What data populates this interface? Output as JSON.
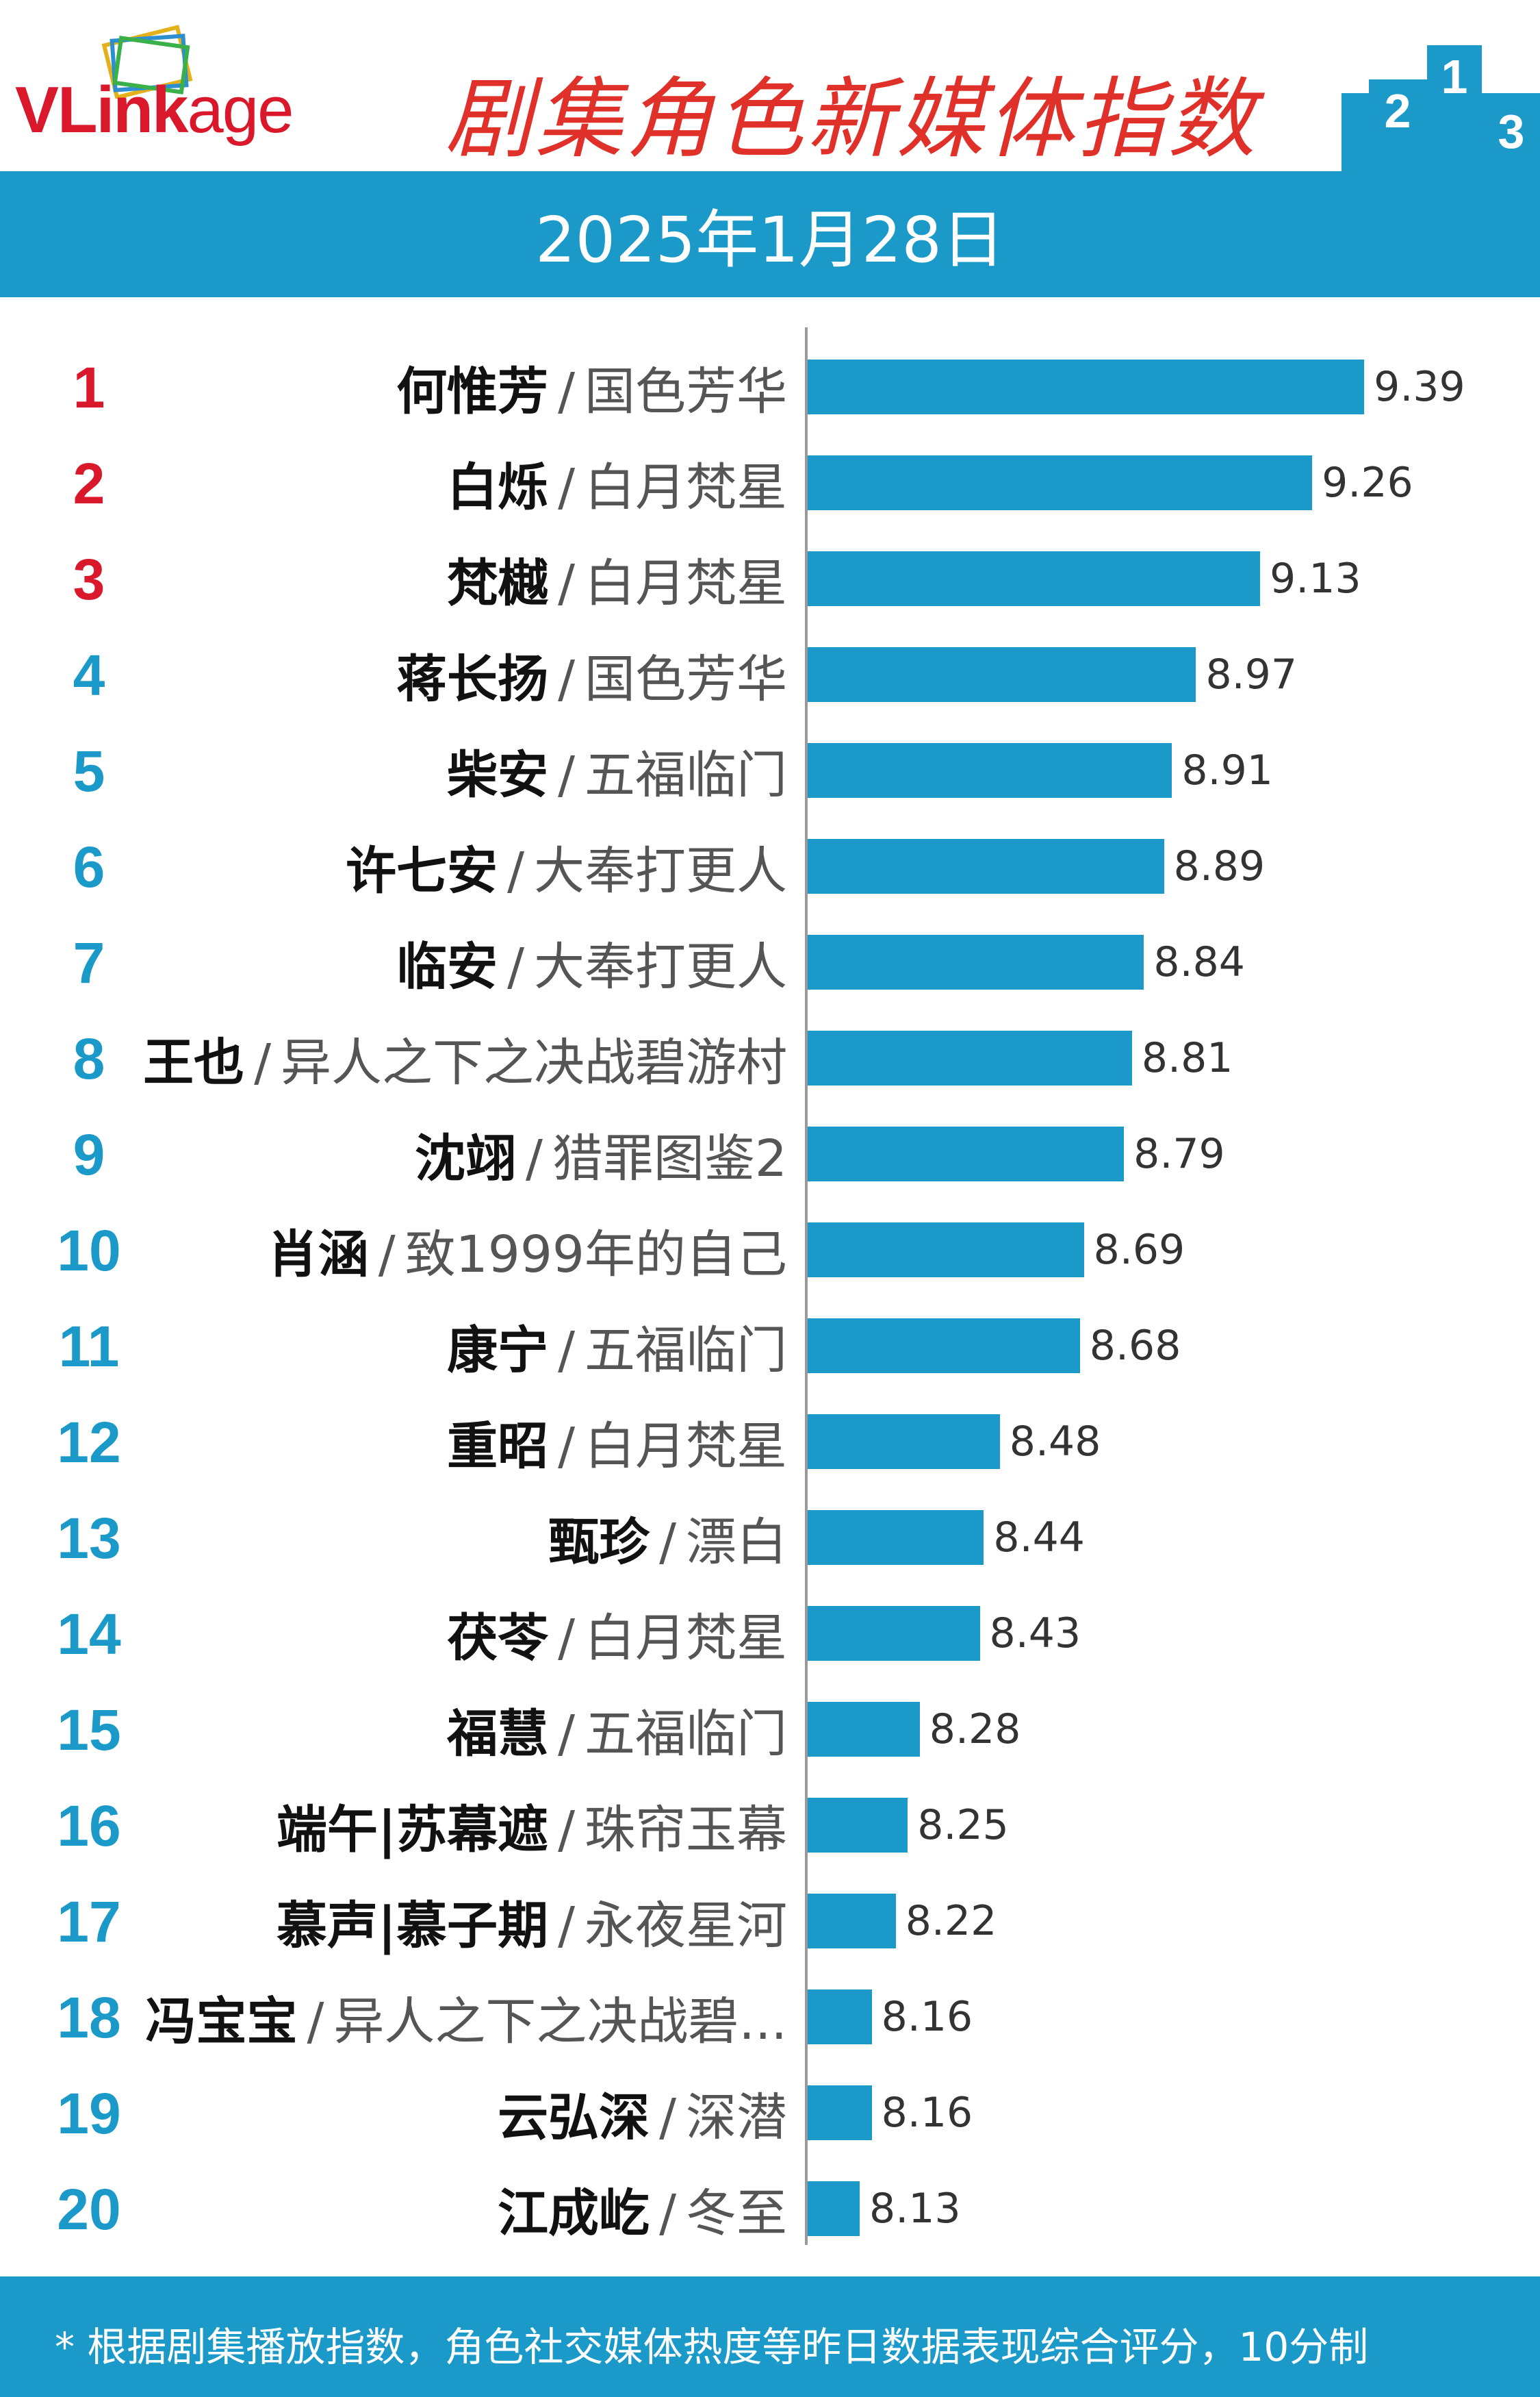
{
  "header": {
    "logo": {
      "text": "VLinkage"
    },
    "title": "剧集角色新媒体指数",
    "date": "2025年1月28日",
    "colors": {
      "brand_red": "#e0302a",
      "band_blue": "#1b9ac9",
      "top3_rank": "#d9182b",
      "rank_blue": "#1b9ac9"
    }
  },
  "chart_data": {
    "type": "bar",
    "orientation": "horizontal",
    "xlim": [
      0,
      10
    ],
    "categories": [
      {
        "rank": "1",
        "name": "何惟芳",
        "show": "国色芳华"
      },
      {
        "rank": "2",
        "name": "白烁",
        "show": "白月梵星"
      },
      {
        "rank": "3",
        "name": "梵樾",
        "show": "白月梵星"
      },
      {
        "rank": "4",
        "name": "蒋长扬",
        "show": "国色芳华"
      },
      {
        "rank": "5",
        "name": "柴安",
        "show": "五福临门"
      },
      {
        "rank": "6",
        "name": "许七安",
        "show": "大奉打更人"
      },
      {
        "rank": "7",
        "name": "临安",
        "show": "大奉打更人"
      },
      {
        "rank": "8",
        "name": "王也",
        "show": "异人之下之决战碧游村"
      },
      {
        "rank": "9",
        "name": "沈翊",
        "show": "猎罪图鉴2"
      },
      {
        "rank": "10",
        "name": "肖涵",
        "show": "致1999年的自己"
      },
      {
        "rank": "11",
        "name": "康宁",
        "show": "五福临门"
      },
      {
        "rank": "12",
        "name": "重昭",
        "show": "白月梵星"
      },
      {
        "rank": "13",
        "name": "甄珍",
        "show": "漂白"
      },
      {
        "rank": "14",
        "name": "茯苓",
        "show": "白月梵星"
      },
      {
        "rank": "15",
        "name": "福慧",
        "show": "五福临门"
      },
      {
        "rank": "16",
        "name": "端午|苏幕遮",
        "show": "珠帘玉幕"
      },
      {
        "rank": "17",
        "name": "慕声|慕子期",
        "show": "永夜星河"
      },
      {
        "rank": "18",
        "name": "冯宝宝",
        "show": "异人之下之决战碧..."
      },
      {
        "rank": "19",
        "name": "云弘深",
        "show": "深潜"
      },
      {
        "rank": "20",
        "name": "江成屹",
        "show": "冬至"
      }
    ],
    "values": [
      9.39,
      9.26,
      9.13,
      8.97,
      8.91,
      8.89,
      8.84,
      8.81,
      8.79,
      8.69,
      8.68,
      8.48,
      8.44,
      8.43,
      8.28,
      8.25,
      8.22,
      8.16,
      8.16,
      8.13
    ],
    "value_labels": [
      "9.39",
      "9.26",
      "9.13",
      "8.97",
      "8.91",
      "8.89",
      "8.84",
      "8.81",
      "8.79",
      "8.69",
      "8.68",
      "8.48",
      "8.44",
      "8.43",
      "8.28",
      "8.25",
      "8.22",
      "8.16",
      "8.16",
      "8.13"
    ],
    "separator": "/",
    "grid": false
  },
  "footer": {
    "note": "* 根据剧集播放指数，角色社交媒体热度等昨日数据表现综合评分，10分制"
  }
}
